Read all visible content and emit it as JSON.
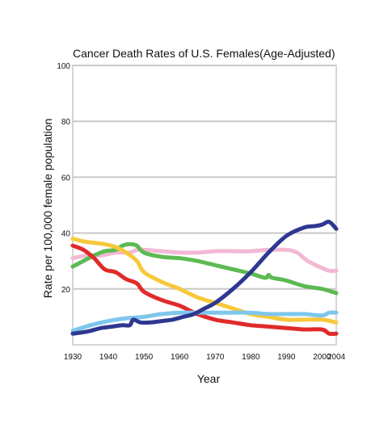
{
  "chart_data": {
    "type": "line",
    "title": "Cancer Death Rates of U.S. Females(Age-Adjusted)",
    "xlabel": "Year",
    "ylabel": "Rate per 100,000 female population",
    "xlim": [
      1930,
      2004
    ],
    "ylim": [
      0,
      100
    ],
    "x_ticks": [
      "1930",
      "1940",
      "1950",
      "1960",
      "1970",
      "1980",
      "1990",
      "2000",
      "2004"
    ],
    "y_ticks": [
      "20",
      "40",
      "60",
      "80",
      "100"
    ],
    "grid": "horizontal",
    "legend": "none",
    "series": [
      {
        "color": "#f2b8d4",
        "x": [
          1930,
          1934,
          1938,
          1942,
          1946,
          1948,
          1950,
          1955,
          1960,
          1965,
          1970,
          1975,
          1980,
          1985,
          1990,
          1993,
          1996,
          2000,
          2002,
          2004
        ],
        "values": [
          31,
          32,
          32,
          33,
          33,
          34,
          34,
          33.5,
          33,
          33,
          33.5,
          33.5,
          33.5,
          34,
          34,
          33,
          30,
          27.5,
          26.5,
          26.5
        ]
      },
      {
        "color": "#5dba52",
        "x": [
          1930,
          1933,
          1936,
          1939,
          1942,
          1944,
          1946,
          1948,
          1950,
          1955,
          1960,
          1965,
          1970,
          1975,
          1980,
          1984,
          1985,
          1986,
          1990,
          1995,
          2000,
          2004
        ],
        "values": [
          28,
          30,
          32,
          33.5,
          34,
          35.5,
          36,
          35.5,
          33,
          31.5,
          31,
          30,
          28.5,
          27,
          25.5,
          24,
          25,
          24,
          23,
          21,
          20,
          18.5
        ]
      },
      {
        "color": "#f7c83b",
        "x": [
          1930,
          1933,
          1936,
          1939,
          1942,
          1945,
          1948,
          1950,
          1955,
          1960,
          1965,
          1970,
          1975,
          1980,
          1985,
          1990,
          1995,
          2000,
          2004
        ],
        "values": [
          38,
          37,
          36.5,
          36,
          35,
          33,
          30,
          26,
          22.5,
          20,
          17,
          15,
          13,
          11,
          10,
          9,
          9,
          9,
          8
        ]
      },
      {
        "color": "#e12a2a",
        "x": [
          1930,
          1933,
          1936,
          1939,
          1942,
          1945,
          1948,
          1950,
          1955,
          1960,
          1965,
          1970,
          1975,
          1980,
          1985,
          1990,
          1995,
          2000,
          2002,
          2004
        ],
        "values": [
          35.5,
          34,
          31,
          27,
          26,
          23.5,
          22,
          19,
          16,
          14,
          11,
          9,
          8,
          7,
          6.5,
          6,
          5.5,
          5.5,
          4,
          4
        ]
      },
      {
        "color": "#7ec7ec",
        "x": [
          1930,
          1935,
          1940,
          1945,
          1950,
          1955,
          1960,
          1965,
          1970,
          1975,
          1980,
          1985,
          1990,
          1995,
          2000,
          2002,
          2004
        ],
        "values": [
          5,
          7,
          8.5,
          9.5,
          10,
          11,
          11.5,
          11.5,
          11.5,
          11.5,
          11.5,
          11,
          11,
          11,
          10.5,
          11.5,
          11.5
        ]
      },
      {
        "color": "#2e3891",
        "x": [
          1930,
          1933,
          1935,
          1938,
          1941,
          1944,
          1946,
          1947,
          1949,
          1952,
          1955,
          1958,
          1961,
          1964,
          1967,
          1970,
          1975,
          1980,
          1985,
          1990,
          1995,
          1998,
          2000,
          2002,
          2004
        ],
        "values": [
          4,
          4.5,
          5,
          6,
          6.5,
          7,
          7,
          9,
          8,
          8,
          8.5,
          9,
          10,
          11,
          13,
          15,
          20,
          26,
          33,
          39,
          42,
          42.5,
          43,
          44,
          41.5
        ]
      }
    ]
  }
}
